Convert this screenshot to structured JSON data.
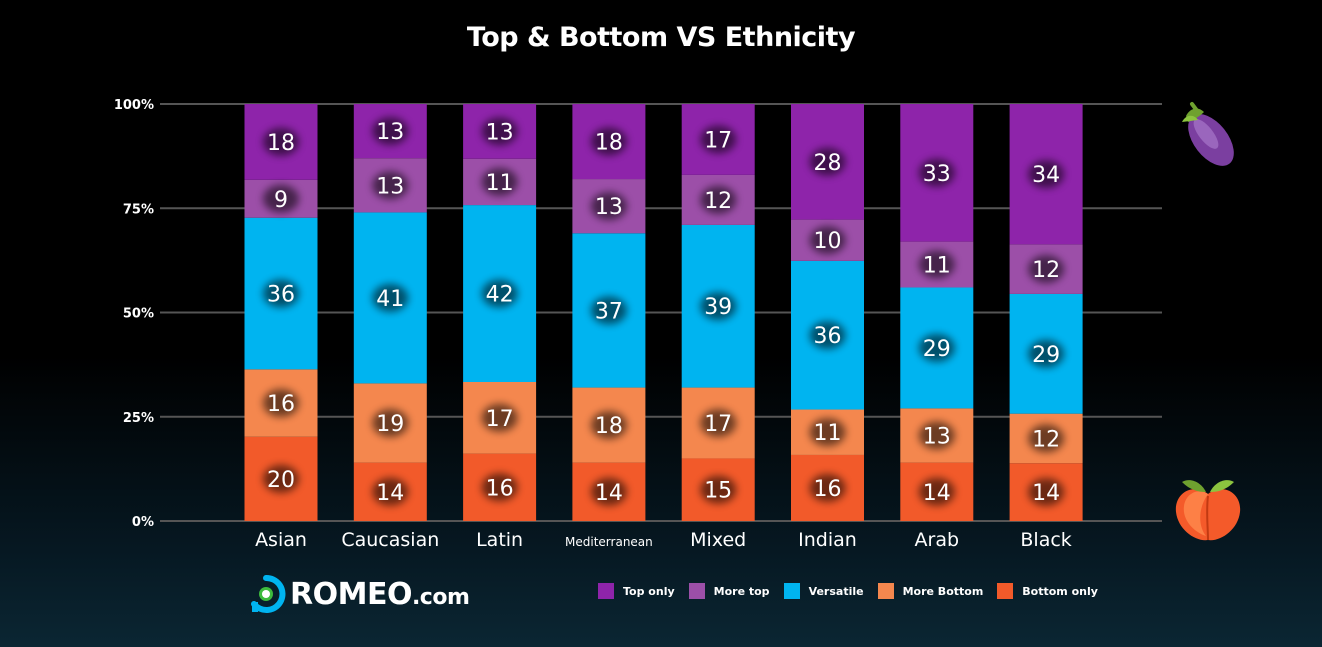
{
  "colors": {
    "top_only": "#8e24aa",
    "more_top": "#9c4fa8",
    "versatile": "#00b4f0",
    "more_bottom": "#f4874e",
    "bottom_only": "#f25a2a",
    "grid": "#555555",
    "background": "#000000"
  },
  "logo": {
    "name": "ROMEO",
    "domain": ".com"
  },
  "icons": {
    "top": "eggplant-icon",
    "bottom": "peach-icon",
    "logo": "romeo-logo-icon"
  },
  "chart_data": {
    "type": "bar",
    "stacked": true,
    "percent": true,
    "title": "Top & Bottom VS Ethnicity",
    "categories": [
      "Asian",
      "Caucasian",
      "Latin",
      "Mediterranean",
      "Mixed",
      "Indian",
      "Arab",
      "Black"
    ],
    "series": [
      {
        "name": "Bottom only",
        "values": [
          20,
          14,
          16,
          14,
          15,
          16,
          14,
          14
        ]
      },
      {
        "name": "More Bottom",
        "values": [
          16,
          19,
          17,
          18,
          17,
          11,
          13,
          12
        ]
      },
      {
        "name": "Versatile",
        "values": [
          36,
          41,
          42,
          37,
          39,
          36,
          29,
          29
        ]
      },
      {
        "name": "More top",
        "values": [
          9,
          13,
          11,
          13,
          12,
          10,
          11,
          12
        ]
      },
      {
        "name": "Top only",
        "values": [
          18,
          13,
          13,
          18,
          17,
          28,
          33,
          34
        ]
      }
    ],
    "legend_order": [
      "Top only",
      "More top",
      "Versatile",
      "More Bottom",
      "Bottom only"
    ],
    "yticks": [
      "0%",
      "25%",
      "50%",
      "75%",
      "100%"
    ],
    "ylim": [
      0,
      100
    ],
    "grid": true,
    "legend_position": "bottom"
  }
}
